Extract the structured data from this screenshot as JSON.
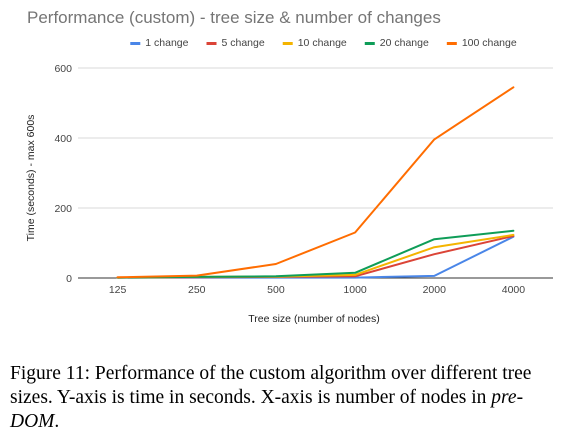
{
  "chart_data": {
    "type": "line",
    "title": "Performance (custom) - tree size & number of changes",
    "xlabel": "Tree size (number of nodes)",
    "ylabel": "Time (seconds) - max 600s",
    "categories": [
      "125",
      "250",
      "500",
      "1000",
      "2000",
      "4000"
    ],
    "ylim": [
      0,
      600
    ],
    "yticks": [
      0,
      200,
      400,
      600
    ],
    "grid": true,
    "legend_position": "top",
    "series": [
      {
        "name": "1 change",
        "color": "#4a86e8",
        "values": [
          1,
          1,
          1,
          1,
          6,
          118
        ]
      },
      {
        "name": "5 change",
        "color": "#db4437",
        "values": [
          1,
          2,
          3,
          5,
          68,
          120
        ]
      },
      {
        "name": "10 change",
        "color": "#f4b400",
        "values": [
          1,
          3,
          4,
          9,
          88,
          123
        ]
      },
      {
        "name": "20 change",
        "color": "#0f9d58",
        "values": [
          1,
          3,
          5,
          15,
          111,
          135
        ]
      },
      {
        "name": "100 change",
        "color": "#ff6d01",
        "values": [
          2,
          7,
          40,
          130,
          396,
          545
        ]
      }
    ]
  },
  "caption": {
    "text_main": "Figure 11: Performance of the custom algorithm over different tree sizes. Y-axis is time in seconds. X-axis is number of nodes in ",
    "text_em": "pre-DOM",
    "text_end": "."
  }
}
